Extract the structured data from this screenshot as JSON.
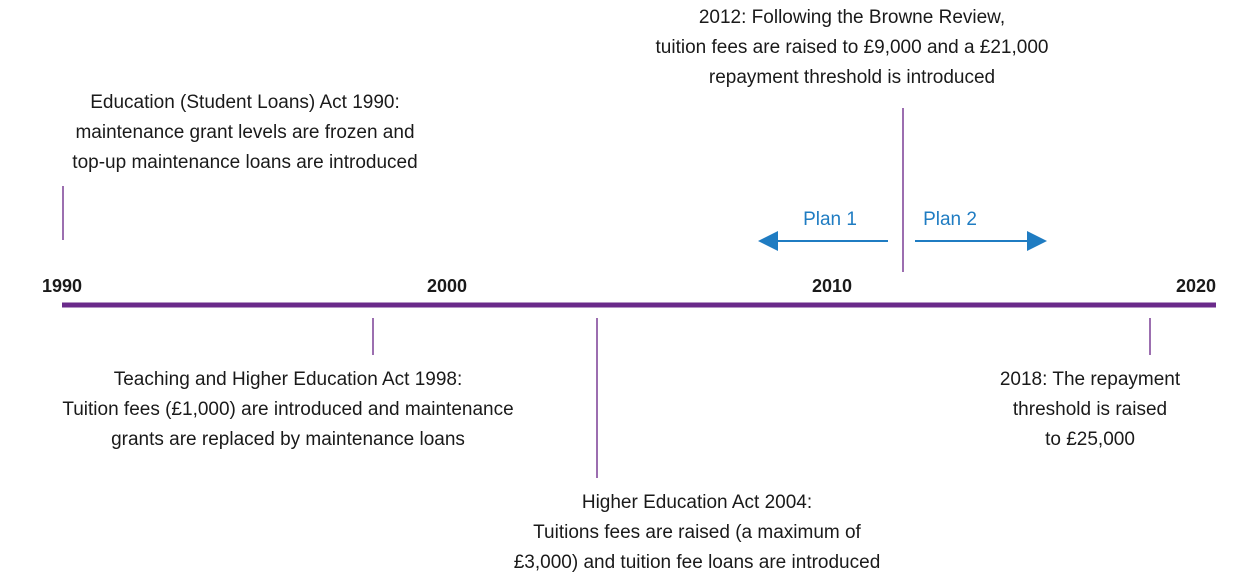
{
  "axis": {
    "labels": [
      "1990",
      "2000",
      "2010",
      "2020"
    ]
  },
  "events": [
    {
      "lines": [
        "Education (Student Loans) Act 1990:",
        "maintenance grant levels are frozen and",
        "top-up maintenance loans are introduced"
      ]
    },
    {
      "lines": [
        "Teaching and Higher Education Act 1998:",
        "Tuition fees (£1,000) are introduced and maintenance",
        "grants are replaced by maintenance loans"
      ]
    },
    {
      "lines": [
        "Higher Education Act 2004:",
        "Tuitions fees are raised (a maximum of",
        "£3,000) and tuition fee loans are introduced"
      ]
    },
    {
      "lines": [
        "2012: Following the Browne Review,",
        "tuition fees are raised to £9,000 and a £21,000",
        "repayment threshold is introduced"
      ]
    },
    {
      "lines": [
        "2018: The repayment",
        "threshold is raised",
        "to £25,000"
      ]
    }
  ],
  "plans": [
    "Plan 1",
    "Plan 2"
  ]
}
